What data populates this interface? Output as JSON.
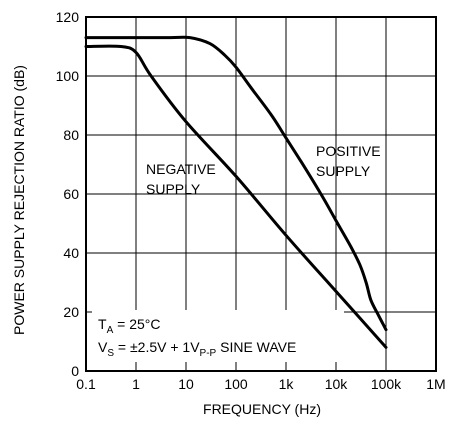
{
  "chart_data": {
    "type": "line",
    "title": "",
    "xlabel": "FREQUENCY (Hz)",
    "ylabel": "POWER SUPPLY REJECTION RATIO (dB)",
    "x_scale": "log",
    "xlim": [
      0.1,
      1000000
    ],
    "ylim": [
      0,
      120
    ],
    "x_ticks": [
      0.1,
      1,
      10,
      100,
      1000,
      10000,
      100000,
      1000000
    ],
    "x_tick_labels": [
      "0.1",
      "1",
      "10",
      "100",
      "1k",
      "10k",
      "100k",
      "1M"
    ],
    "y_ticks": [
      0,
      20,
      40,
      60,
      80,
      100,
      120
    ],
    "y_tick_labels": [
      "0",
      "20",
      "40",
      "60",
      "80",
      "100",
      "120"
    ],
    "grid": true,
    "series": [
      {
        "name": "POSITIVE SUPPLY",
        "label_lines": [
          "POSITIVE",
          "SUPPLY"
        ],
        "color": "#000000",
        "x": [
          0.1,
          1,
          5,
          12,
          30,
          60,
          100,
          200,
          500,
          1000,
          2000,
          5000,
          10000,
          20000,
          30000,
          40000,
          50000,
          70000,
          100000
        ],
        "y": [
          113,
          113,
          113,
          113,
          111,
          107,
          103,
          96,
          87,
          79,
          71,
          60,
          51,
          42,
          36,
          30,
          24,
          19,
          14
        ]
      },
      {
        "name": "NEGATIVE SUPPLY",
        "label_lines": [
          "NEGATIVE",
          "SUPPLY"
        ],
        "color": "#000000",
        "x": [
          0.1,
          0.5,
          1,
          2,
          10,
          100,
          1000,
          10000,
          100000
        ],
        "y": [
          110,
          110,
          108,
          100,
          84.5,
          66,
          46,
          27,
          8
        ]
      }
    ],
    "annotations": {
      "ta": {
        "prefix": "T",
        "sub": "A",
        "suffix": " = 25°C"
      },
      "vs": {
        "prefix": "V",
        "sub": "S",
        "middle": " = ±2.5V + 1V",
        "sub2": "P-P",
        "suffix": " SINE WAVE"
      }
    }
  }
}
